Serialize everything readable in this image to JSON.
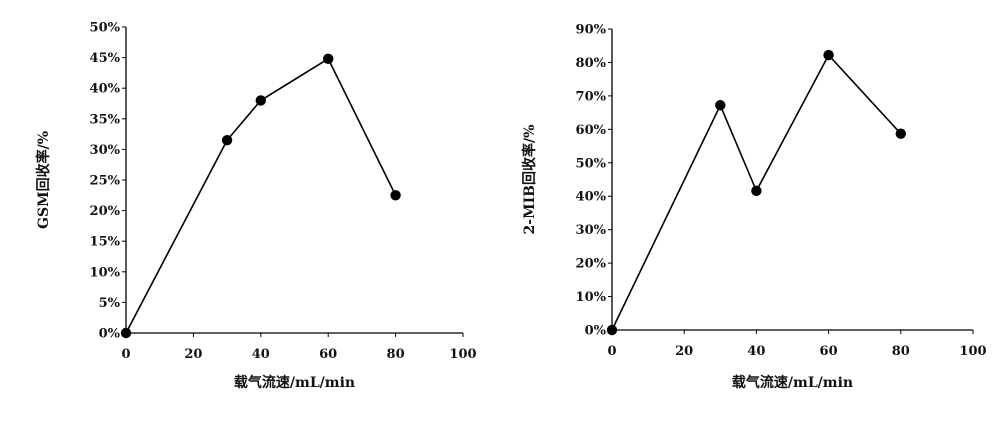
{
  "chart_data": [
    {
      "type": "line",
      "xlabel": "载气流速/mL/min",
      "ylabel": "GSM回收率/%",
      "xlim": [
        0,
        100
      ],
      "ylim": [
        0,
        0.5
      ],
      "x_ticks": [
        0,
        20,
        40,
        60,
        80,
        100
      ],
      "y_ticks": [
        "0%",
        "5%",
        "10%",
        "15%",
        "20%",
        "25%",
        "30%",
        "35%",
        "40%",
        "45%",
        "50%"
      ],
      "grid": false,
      "legend": "none",
      "marker": "filled-circle",
      "series": [
        {
          "x": [
            0,
            30,
            40,
            60,
            80
          ],
          "values": [
            0,
            0.315,
            0.38,
            0.448,
            0.225
          ]
        }
      ]
    },
    {
      "type": "line",
      "xlabel": "载气流速/mL/min",
      "ylabel": "2-MIB回收率/%",
      "xlim": [
        0,
        100
      ],
      "ylim": [
        0,
        0.9
      ],
      "x_ticks": [
        0,
        20,
        40,
        60,
        80,
        100
      ],
      "y_ticks": [
        "0%",
        "10%",
        "20%",
        "30%",
        "40%",
        "50%",
        "60%",
        "70%",
        "80%",
        "90%"
      ],
      "grid": false,
      "legend": "none",
      "marker": "filled-circle",
      "series": [
        {
          "x": [
            0,
            30,
            40,
            60,
            80
          ],
          "values": [
            0,
            0.672,
            0.416,
            0.822,
            0.587
          ]
        }
      ]
    }
  ],
  "style": {
    "line_color": "#000000",
    "marker_color": "#000000",
    "background": "#ffffff"
  }
}
